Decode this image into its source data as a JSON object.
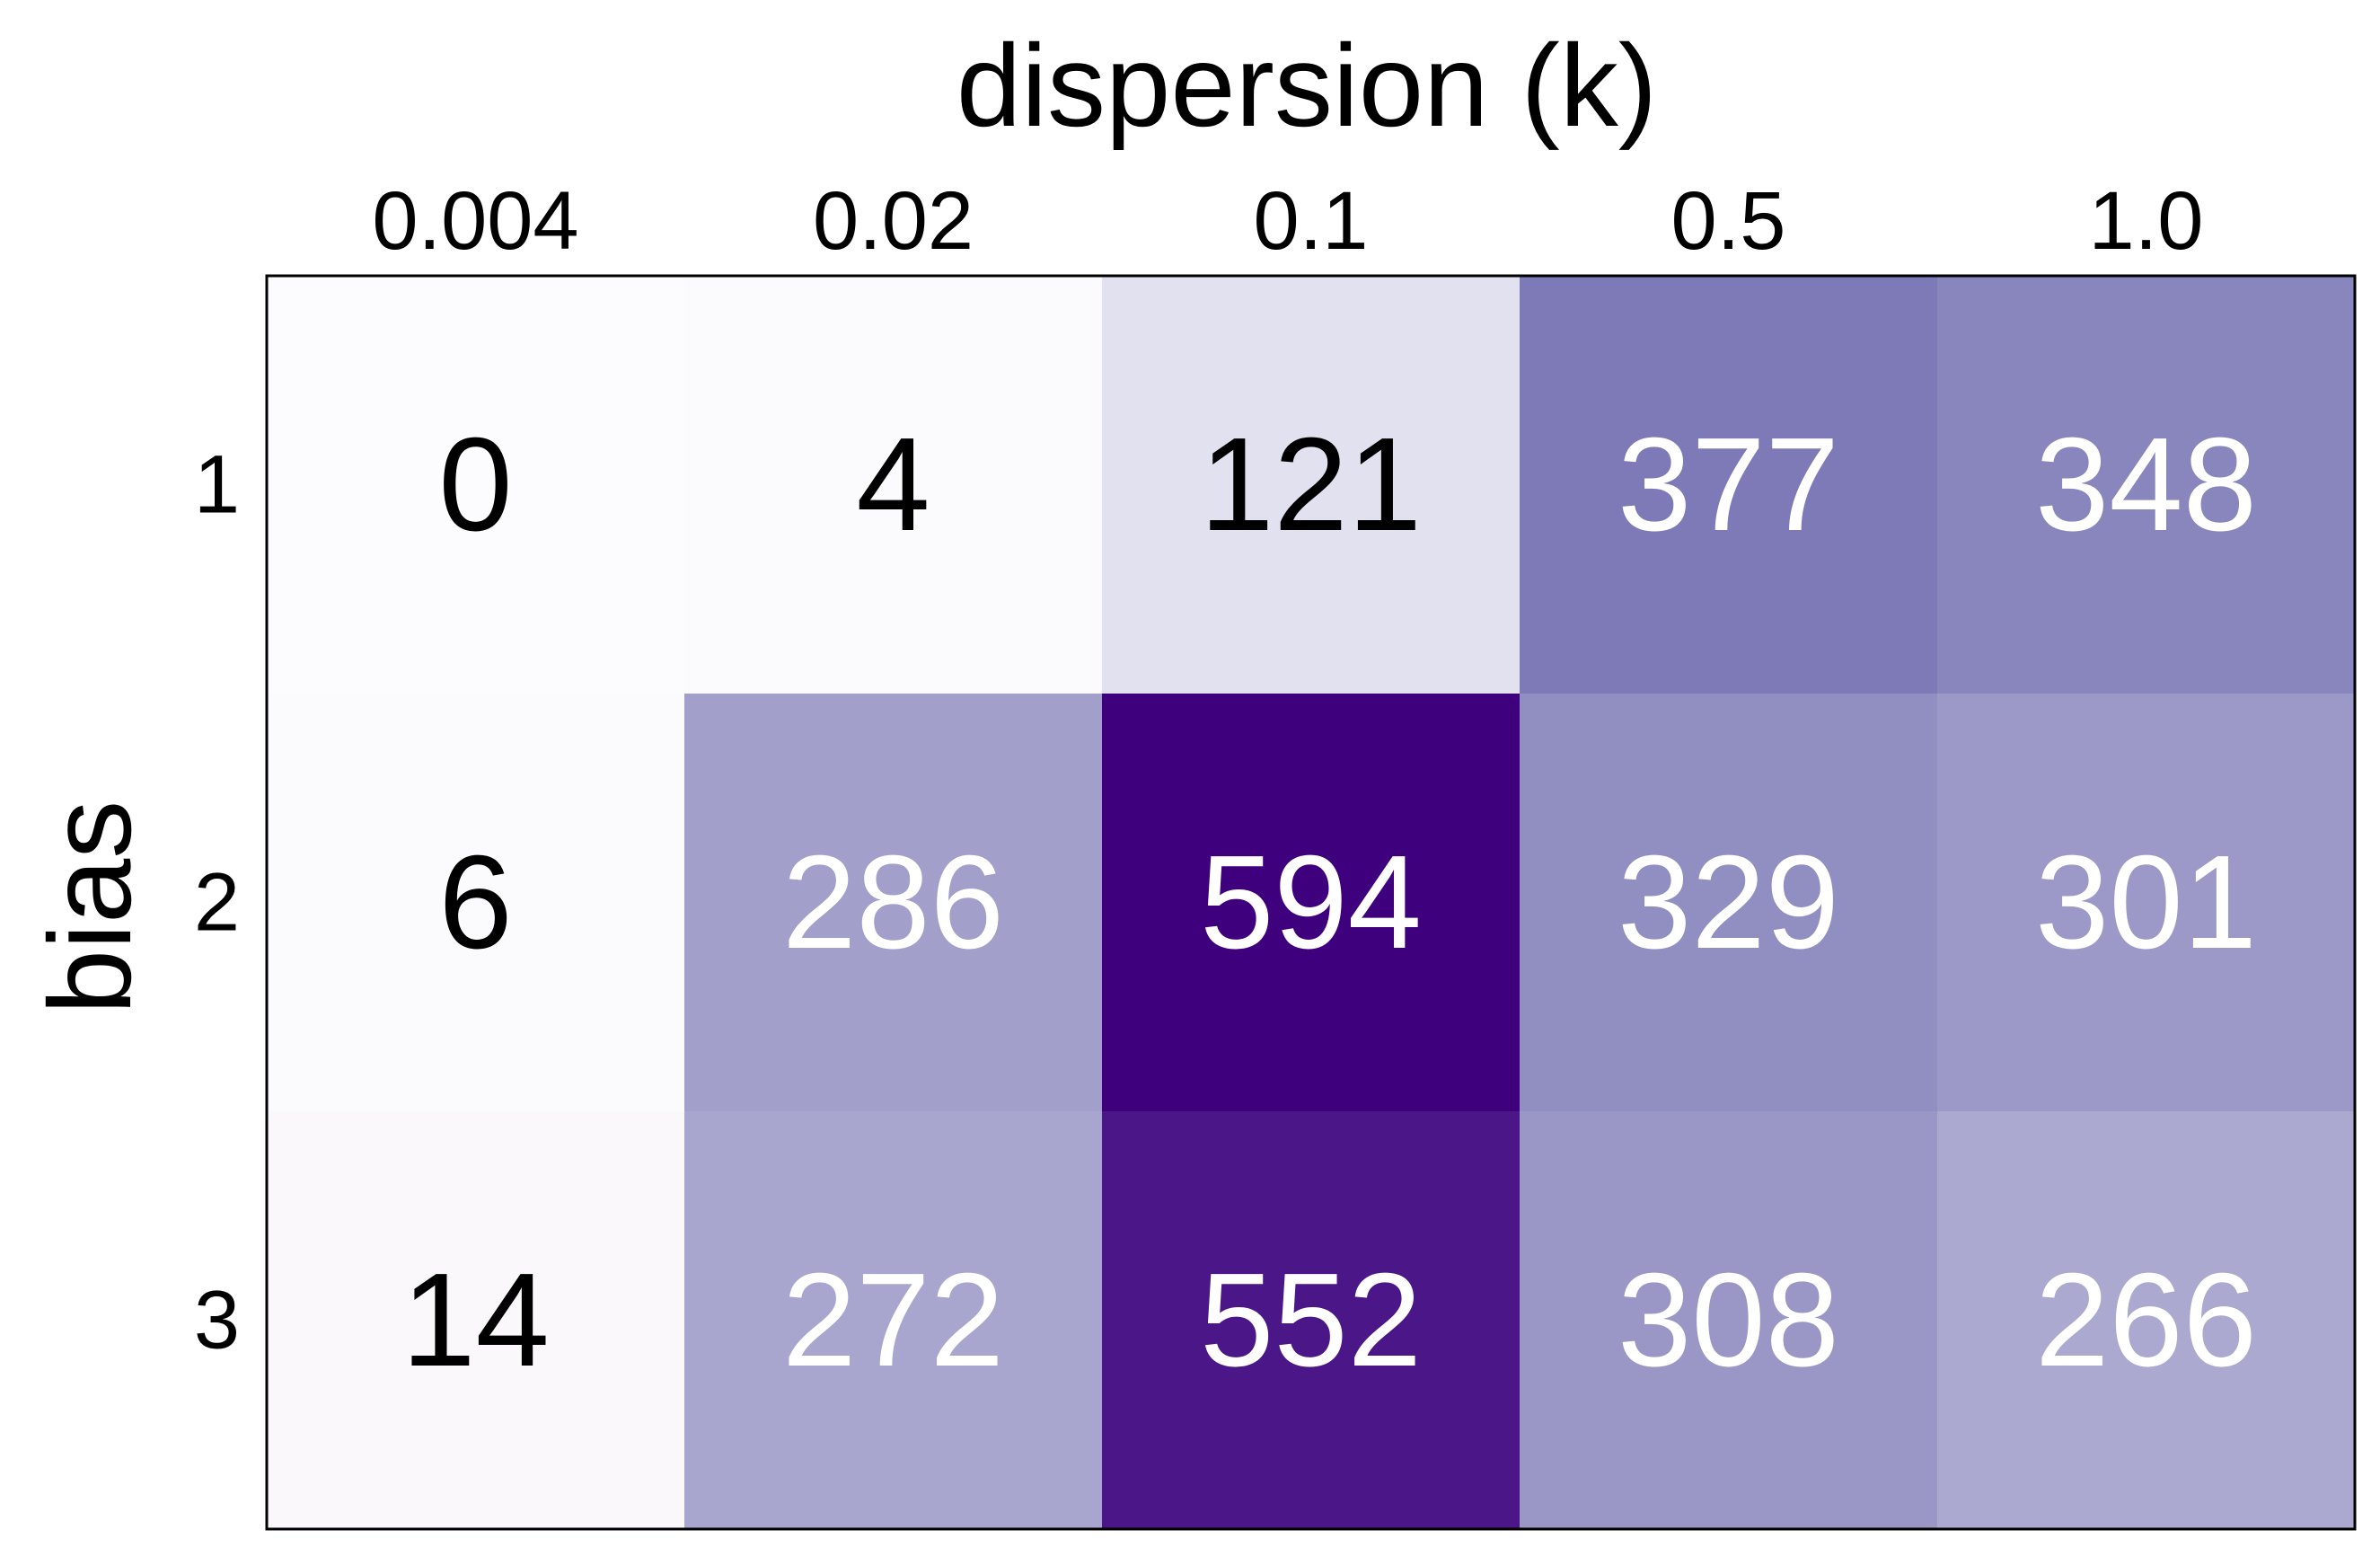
{
  "chart_data": {
    "type": "heatmap",
    "xlabel": "dispersion (k)",
    "ylabel": "bias",
    "x_categories": [
      "0.004",
      "0.02",
      "0.1",
      "0.5",
      "1.0"
    ],
    "y_categories": [
      "1",
      "2",
      "3"
    ],
    "values": [
      [
        0,
        4,
        121,
        377,
        348
      ],
      [
        6,
        286,
        594,
        329,
        301
      ],
      [
        14,
        272,
        552,
        308,
        266
      ]
    ],
    "colormap": "Purples",
    "color_low": "#fcfbfd",
    "color_high": "#3f007d",
    "x_axis_position": "top",
    "grid": false
  }
}
